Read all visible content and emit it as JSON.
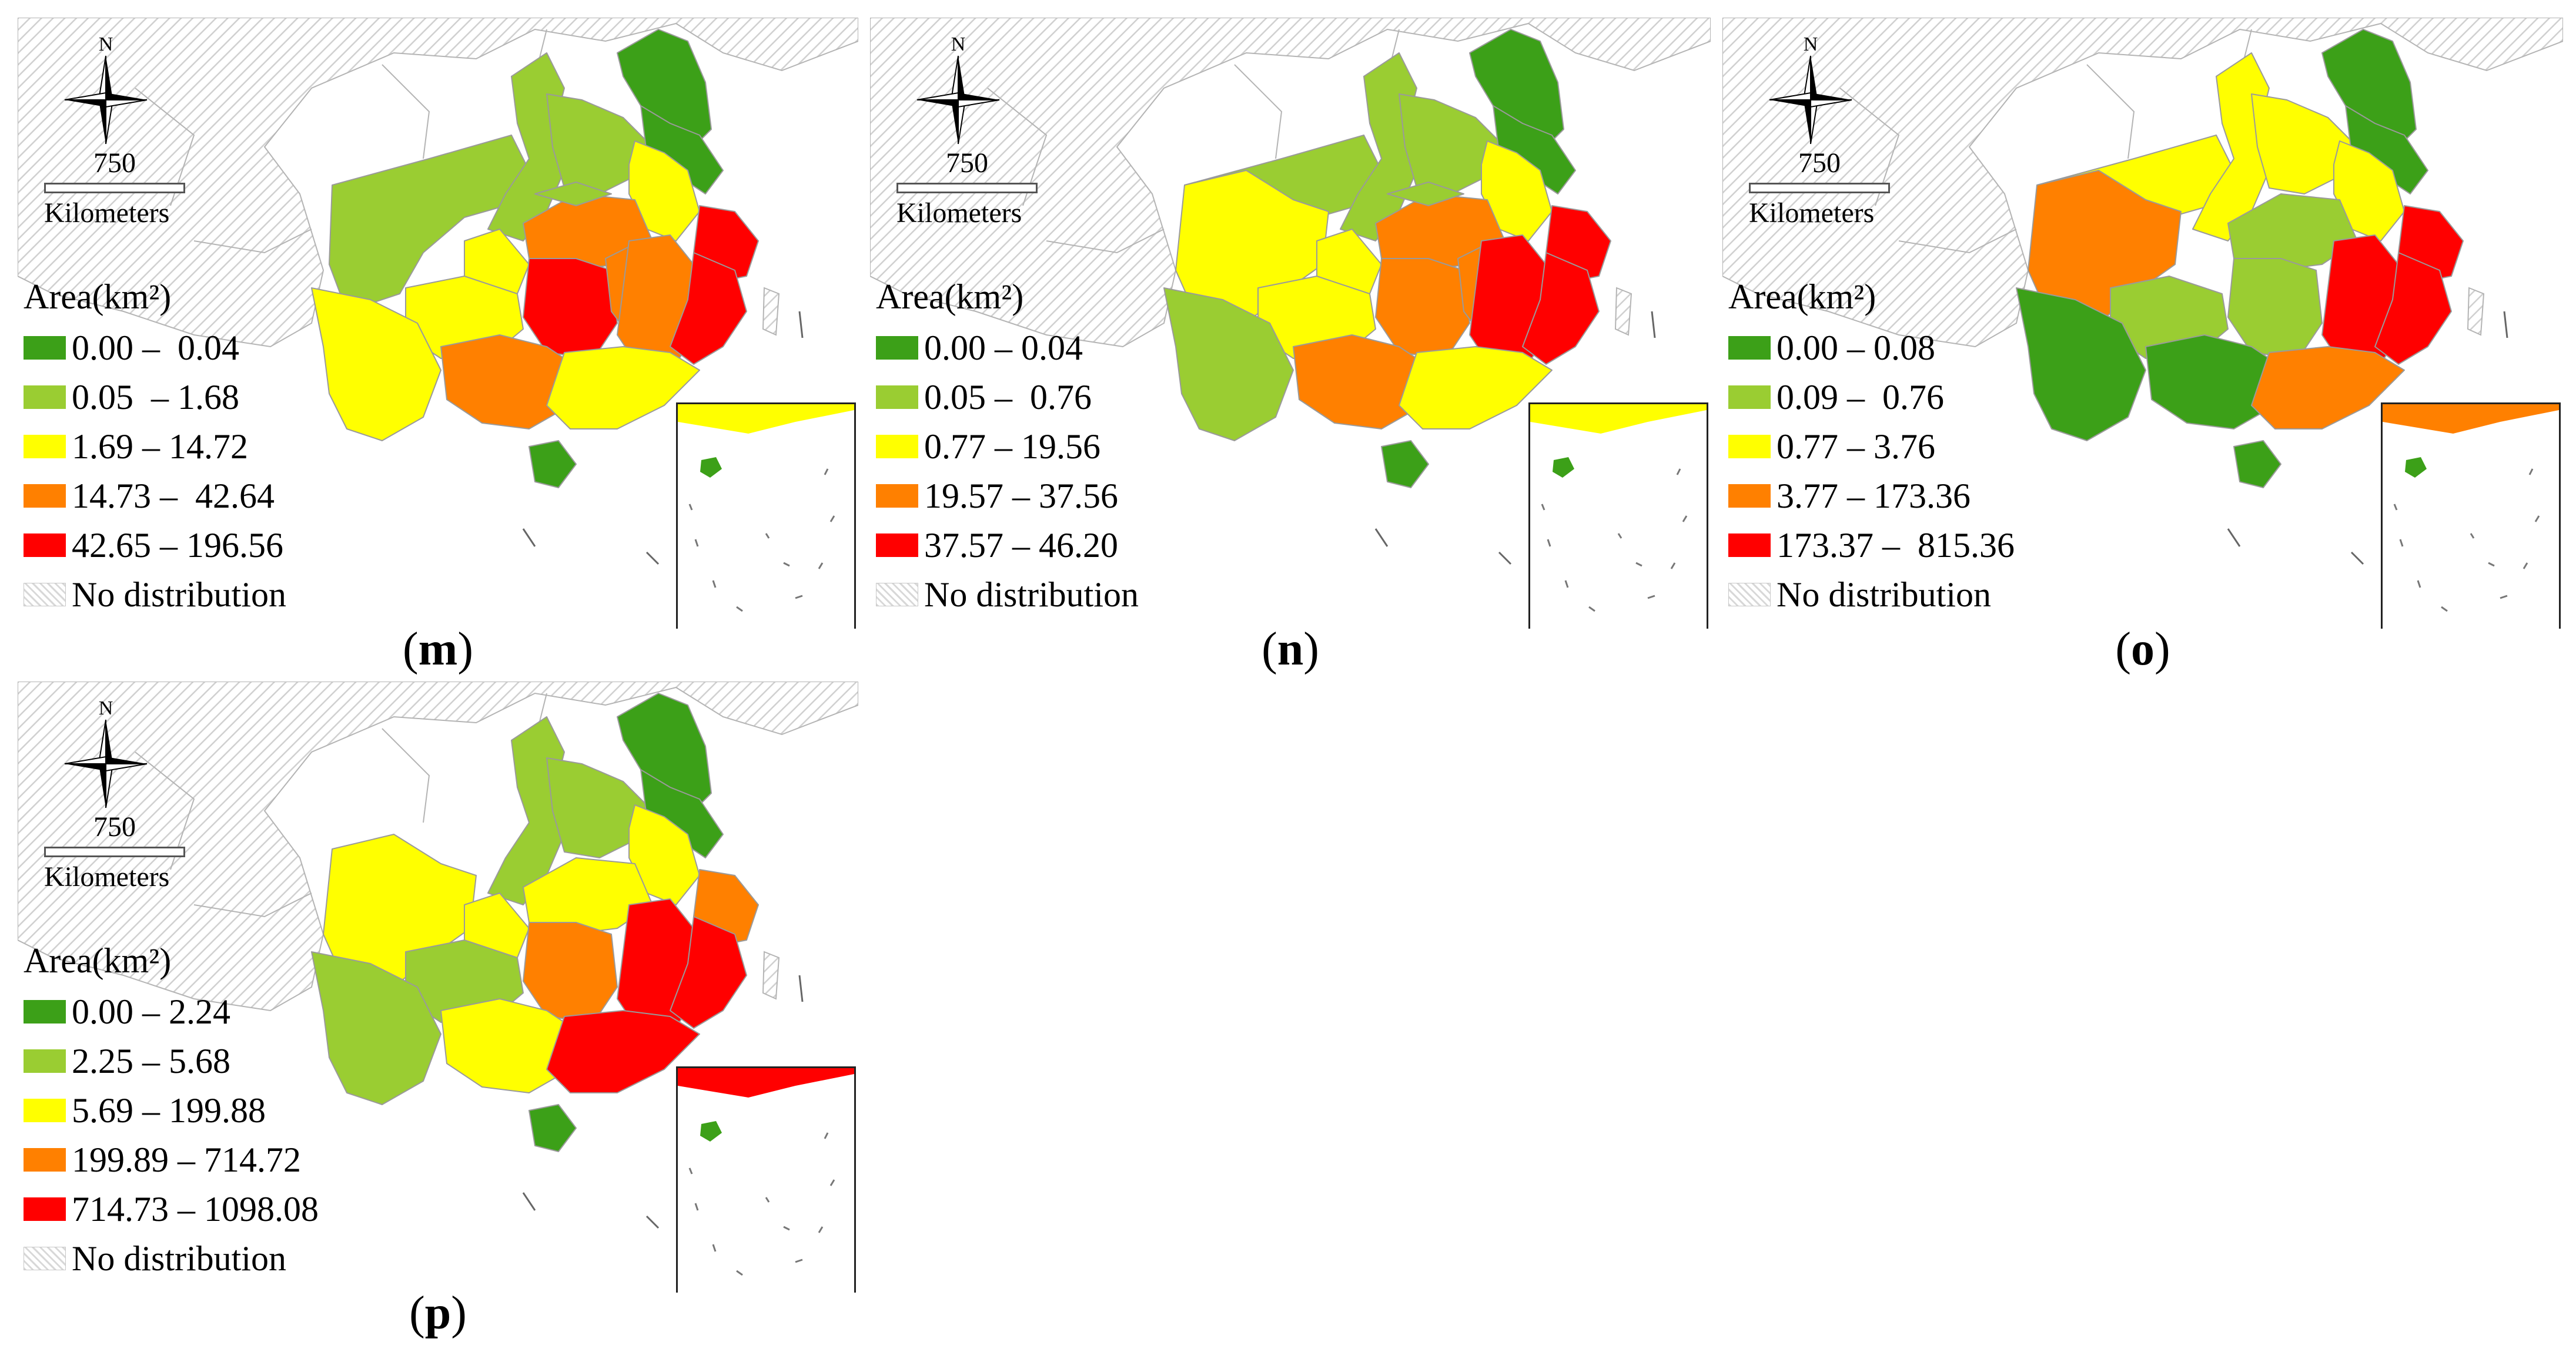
{
  "colors": {
    "dark_green": "#3ca018",
    "light_green": "#9acd32",
    "yellow": "#ffff00",
    "orange": "#ff8000",
    "red": "#ff0000",
    "no_distribution": "#e6e6e6",
    "boundary": "#b4b4b4"
  },
  "compass": {
    "north_label": "N"
  },
  "scale_bar": {
    "distance": "750",
    "unit": "Kilometers"
  },
  "legend_title": "Area(km²)",
  "panels": [
    {
      "id": "m",
      "caption_open": "(",
      "caption_letter": "m",
      "caption_close": ")",
      "legend": [
        {
          "label": "0.00 –  0.04",
          "color_key": "dark_green"
        },
        {
          "label": "0.05  – 1.68",
          "color_key": "light_green"
        },
        {
          "label": "1.69 – 14.72",
          "color_key": "yellow"
        },
        {
          "label": "14.73 –  42.64",
          "color_key": "orange"
        },
        {
          "label": "42.65 – 196.56",
          "color_key": "red"
        },
        {
          "label": "No distribution",
          "color_key": "no_distribution"
        }
      ]
    },
    {
      "id": "n",
      "caption_open": "(",
      "caption_letter": "n",
      "caption_close": ")",
      "legend": [
        {
          "label": "0.00 – 0.04",
          "color_key": "dark_green"
        },
        {
          "label": "0.05 –  0.76",
          "color_key": "light_green"
        },
        {
          "label": "0.77 – 19.56",
          "color_key": "yellow"
        },
        {
          "label": "19.57 – 37.56",
          "color_key": "orange"
        },
        {
          "label": "37.57 – 46.20",
          "color_key": "red"
        },
        {
          "label": "No distribution",
          "color_key": "no_distribution"
        }
      ]
    },
    {
      "id": "o",
      "caption_open": "(",
      "caption_letter": "o",
      "caption_close": ")",
      "legend": [
        {
          "label": "0.00 – 0.08",
          "color_key": "dark_green"
        },
        {
          "label": "0.09 –  0.76",
          "color_key": "light_green"
        },
        {
          "label": "0.77 – 3.76",
          "color_key": "yellow"
        },
        {
          "label": "3.77 – 173.36",
          "color_key": "orange"
        },
        {
          "label": "173.37 –  815.36",
          "color_key": "red"
        },
        {
          "label": "No distribution",
          "color_key": "no_distribution"
        }
      ]
    },
    {
      "id": "p",
      "caption_open": "(",
      "caption_letter": "p",
      "caption_close": ")",
      "legend": [
        {
          "label": "0.00 – 2.24",
          "color_key": "dark_green"
        },
        {
          "label": "2.25 – 5.68",
          "color_key": "light_green"
        },
        {
          "label": "5.69 – 199.88",
          "color_key": "yellow"
        },
        {
          "label": "199.89 – 714.72",
          "color_key": "orange"
        },
        {
          "label": "714.73 – 1098.08",
          "color_key": "red"
        },
        {
          "label": "No distribution",
          "color_key": "no_distribution"
        }
      ]
    }
  ],
  "province_classes": {
    "m": {
      "jiangsu": "dark_green",
      "hainan": "dark_green",
      "shandong": "dark_green",
      "shaanxi": "light_green",
      "henan": "light_green",
      "gansu": "light_green",
      "hubei_north": "light_green",
      "anhui": "yellow",
      "yunnan": "yellow",
      "guizhou": "yellow",
      "guangdong": "yellow",
      "chongqing": "yellow",
      "hunan_e": "orange",
      "guangxi": "orange",
      "jiangxi": "orange",
      "hubei": "orange",
      "hunan": "red",
      "zhejiang": "red",
      "fujian": "red"
    },
    "n": {
      "jiangsu": "dark_green",
      "hainan": "dark_green",
      "shandong": "dark_green",
      "shaanxi": "light_green",
      "henan": "light_green",
      "gansu": "light_green",
      "yunnan": "light_green",
      "hubei_north": "light_green",
      "anhui": "yellow",
      "sichuan": "yellow",
      "guizhou": "yellow",
      "guangdong": "yellow",
      "chongqing": "yellow",
      "hubei": "orange",
      "hunan": "orange",
      "guangxi": "orange",
      "hunan_e": "orange",
      "jiangxi": "red",
      "zhejiang": "red",
      "fujian": "red"
    },
    "o": {
      "jiangsu": "dark_green",
      "hainan": "dark_green",
      "shandong": "dark_green",
      "yunnan": "dark_green",
      "guangxi": "dark_green",
      "hunan": "light_green",
      "hubei": "light_green",
      "guizhou": "light_green",
      "shaanxi": "yellow",
      "henan": "yellow",
      "anhui": "yellow",
      "gansu": "yellow",
      "sichuan": "orange",
      "guangdong": "orange",
      "jiangxi": "red",
      "fujian": "red",
      "zhejiang": "red"
    },
    "p": {
      "jiangsu": "dark_green",
      "hainan": "dark_green",
      "shandong": "dark_green",
      "shaanxi": "light_green",
      "henan": "light_green",
      "yunnan": "light_green",
      "guizhou": "light_green",
      "sichuan": "yellow",
      "hubei": "yellow",
      "anhui": "yellow",
      "guangxi": "yellow",
      "chongqing": "yellow",
      "zhejiang": "orange",
      "hunan": "orange",
      "jiangxi": "red",
      "fujian": "red",
      "guangdong": "red"
    }
  }
}
